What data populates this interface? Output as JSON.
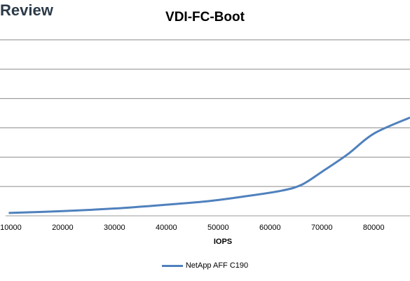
{
  "brand": {
    "text": "Review"
  },
  "chart_data": {
    "type": "line",
    "title": "VDI-FC-Boot",
    "xlabel": "IOPS",
    "ylabel": "",
    "xlim": [
      9000,
      87000
    ],
    "ylim": [
      0,
      7
    ],
    "y_gridlines": [
      1,
      2,
      3,
      4,
      5,
      6
    ],
    "x_ticks": [
      10000,
      20000,
      30000,
      40000,
      50000,
      60000,
      70000,
      80000
    ],
    "x_tick_labels": [
      "10000",
      "20000",
      "30000",
      "40000",
      "50000",
      "60000",
      "70000",
      "80000"
    ],
    "grid": true,
    "legend_position": "bottom",
    "series": [
      {
        "name": "NetApp AFF C190",
        "color": "#4f81bd",
        "x": [
          9600,
          20000,
          30000,
          40000,
          48000,
          55000,
          62000,
          66000,
          70000,
          75000,
          80000,
          87000
        ],
        "y": [
          0.1,
          0.16,
          0.25,
          0.38,
          0.5,
          0.66,
          0.85,
          1.05,
          1.5,
          2.1,
          2.8,
          3.35
        ]
      }
    ]
  }
}
